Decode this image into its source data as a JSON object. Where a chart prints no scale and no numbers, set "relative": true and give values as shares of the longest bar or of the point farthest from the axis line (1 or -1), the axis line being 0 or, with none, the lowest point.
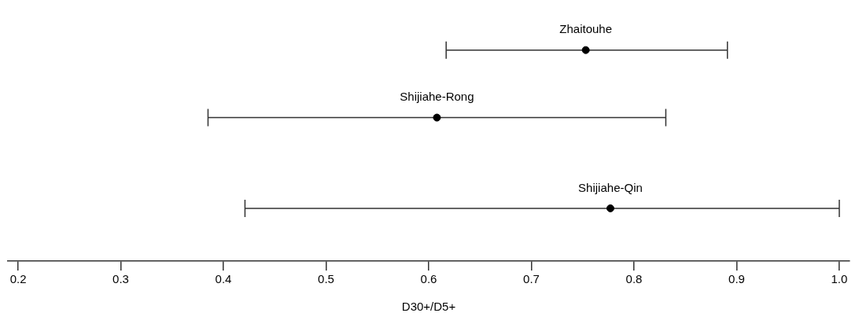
{
  "chart_data": {
    "type": "scatter",
    "xlabel": "D30+/D5+",
    "relative": true,
    "x": [
      0.753,
      0.608,
      0.777
    ],
    "values": [
      1,
      0.68,
      0.25
    ],
    "xerrors": [
      [
        0.617,
        0.891
      ],
      [
        0.385,
        0.831
      ],
      [
        0.421,
        1.0
      ]
    ],
    "annotations": [
      {
        "text": "Zhaitouhe",
        "x": 0.753,
        "y": 1
      },
      {
        "text": "Shijiahe-Rong",
        "x": 0.608,
        "y": 0.68
      },
      {
        "text": "Shijiahe-Qin",
        "x": 0.777,
        "y": 0.25
      }
    ],
    "color": "#000000",
    "marker": "circle",
    "xlim": [
      0.19,
      1.01
    ],
    "xticks": [
      0.2,
      0.3,
      0.4,
      0.5,
      0.6,
      0.7,
      0.8,
      0.9,
      {
        "value": 1.0,
        "label": "1.0"
      }
    ],
    "tick_labels": "x",
    "grid": false,
    "legend": false
  }
}
